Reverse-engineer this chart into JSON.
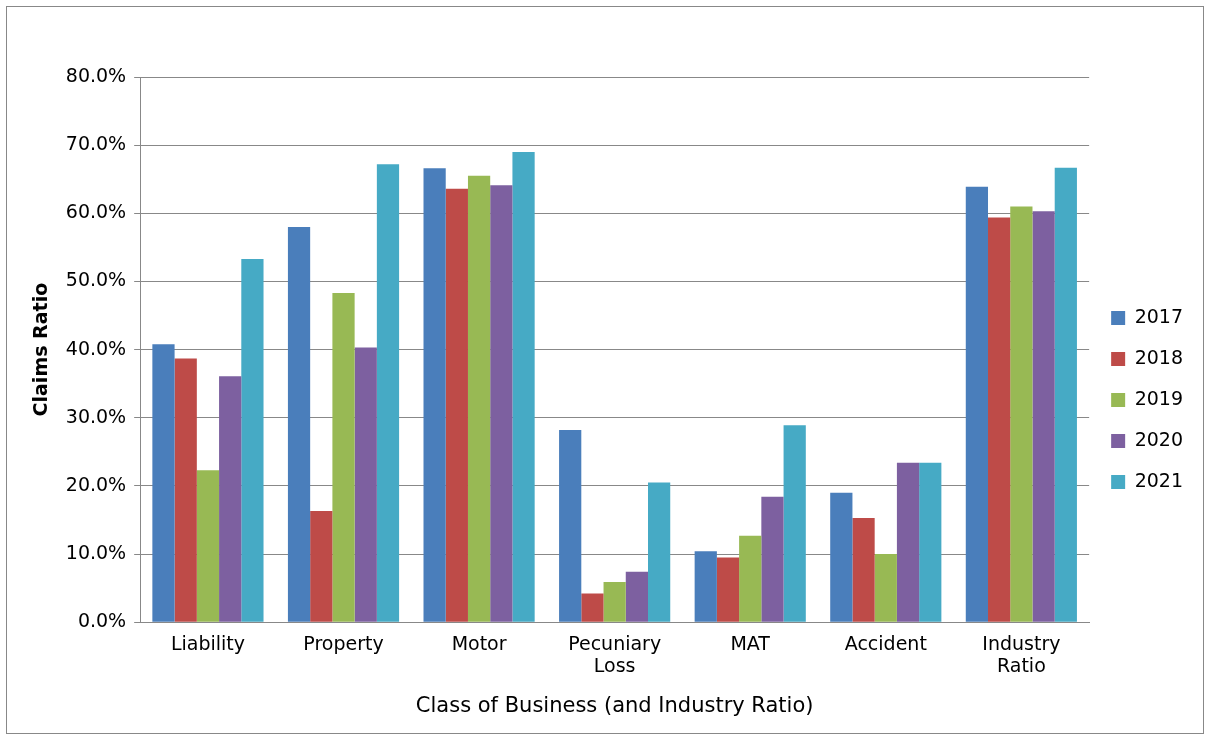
{
  "chart_data": {
    "type": "bar",
    "xlabel": "Class of Business (and Industry Ratio)",
    "ylabel": "Claims Ratio",
    "categories": [
      "Liability",
      "Property",
      "Motor",
      "Pecuniary Loss",
      "MAT",
      "Accident",
      "Industry Ratio"
    ],
    "series": [
      {
        "name": "2017",
        "color": "#4a7ebb",
        "values": [
          40.8,
          58.0,
          66.6,
          28.2,
          10.4,
          19.0,
          63.9
        ]
      },
      {
        "name": "2018",
        "color": "#be4b48",
        "values": [
          38.7,
          16.3,
          63.6,
          4.2,
          9.5,
          15.3,
          59.4
        ]
      },
      {
        "name": "2019",
        "color": "#98b954",
        "values": [
          22.3,
          48.3,
          65.5,
          5.9,
          12.7,
          10.0,
          61.0
        ]
      },
      {
        "name": "2020",
        "color": "#7d60a0",
        "values": [
          36.1,
          40.3,
          64.1,
          7.4,
          18.4,
          23.4,
          60.3
        ]
      },
      {
        "name": "2021",
        "color": "#46aac5",
        "values": [
          53.3,
          67.2,
          69.0,
          20.5,
          28.9,
          23.4,
          66.7
        ]
      }
    ],
    "ylim": [
      0,
      80
    ],
    "yticks": [
      {
        "value": 0,
        "label": "0.0%"
      },
      {
        "value": 10,
        "label": "10.0%"
      },
      {
        "value": 20,
        "label": "20.0%"
      },
      {
        "value": 30,
        "label": "30.0%"
      },
      {
        "value": 40,
        "label": "40.0%"
      },
      {
        "value": 50,
        "label": "50.0%"
      },
      {
        "value": 60,
        "label": "60.0%"
      },
      {
        "value": 70,
        "label": "70.0%"
      },
      {
        "value": 80,
        "label": "80.0%"
      }
    ],
    "grid": "y",
    "legend": "right"
  }
}
